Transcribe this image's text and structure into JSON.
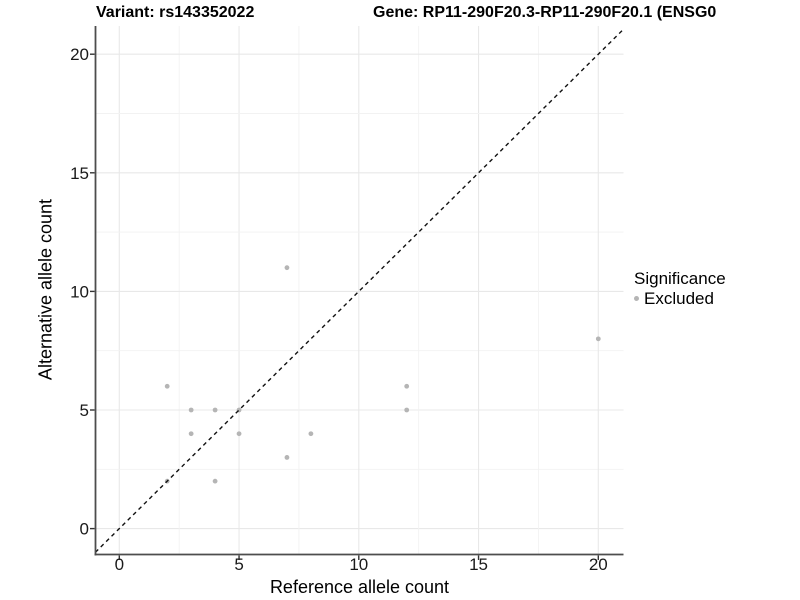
{
  "chart_data": {
    "type": "scatter",
    "title_left": "Variant: rs143352022",
    "title_right": "Gene: RP11-290F20.3-RP11-290F20.1 (ENSG0",
    "xlabel": "Reference allele count",
    "ylabel": "Alternative allele count",
    "xlim": [
      -1.0,
      21.1
    ],
    "ylim": [
      -1.1,
      21.2
    ],
    "x_ticks": [
      0,
      5,
      10,
      15,
      20
    ],
    "y_ticks": [
      0,
      5,
      10,
      15,
      20
    ],
    "grid": "on",
    "minor_grid_step": 2.5,
    "legend_position": "right",
    "series": [
      {
        "name": "Excluded",
        "color": "#b5b5b5",
        "points": [
          [
            2,
            2
          ],
          [
            2,
            6
          ],
          [
            3,
            4
          ],
          [
            3,
            5
          ],
          [
            4,
            2
          ],
          [
            4,
            5
          ],
          [
            5,
            4
          ],
          [
            5,
            5
          ],
          [
            7,
            3
          ],
          [
            7,
            11
          ],
          [
            8,
            4
          ],
          [
            12,
            5
          ],
          [
            12,
            6
          ],
          [
            20,
            8
          ]
        ]
      }
    ],
    "reference_line": {
      "type": "identity",
      "slope": 1,
      "intercept": 0,
      "style": "dashed",
      "color": "#111111"
    }
  },
  "legend": {
    "title": "Significance",
    "items": [
      {
        "label": "Excluded",
        "color": "#b5b5b5"
      }
    ]
  },
  "style": {
    "grid_major_color": "#e8e8e8",
    "grid_minor_color": "#f2f2f2",
    "axis_line_color": "#4d4d4d",
    "tick_color": "#333333",
    "tick_label_color": "#1a1a1a"
  }
}
